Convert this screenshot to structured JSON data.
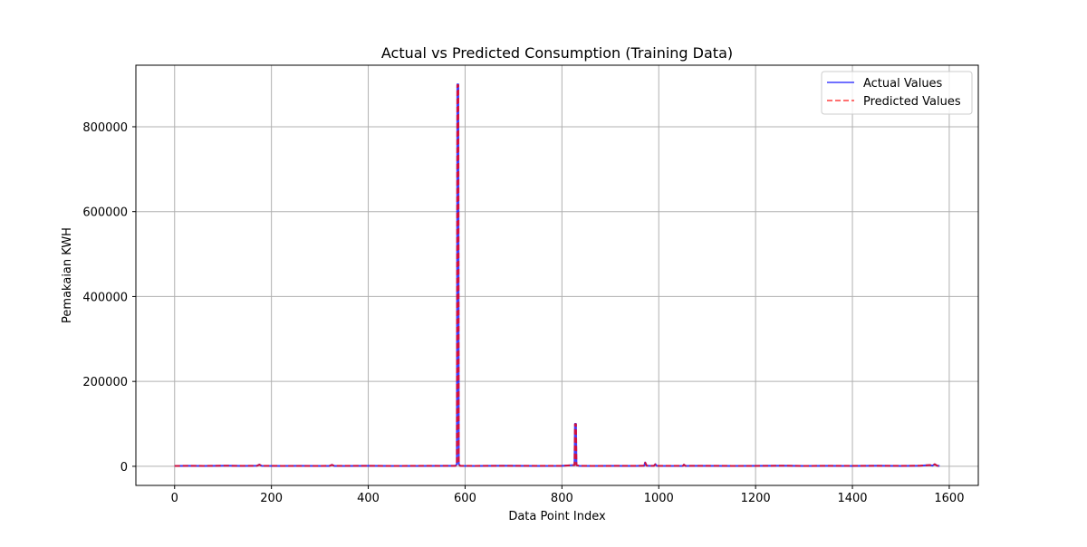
{
  "chart_data": {
    "type": "line",
    "title": "Actual vs Predicted Consumption (Training Data)",
    "xlabel": "Data Point Index",
    "ylabel": "Pemakaian KWH",
    "xlim": [
      -80,
      1660
    ],
    "ylim": [
      -45000,
      945000
    ],
    "xticks": [
      0,
      200,
      400,
      600,
      800,
      1000,
      1200,
      1400,
      1600
    ],
    "yticks": [
      0,
      200000,
      400000,
      600000,
      800000
    ],
    "grid": true,
    "legend_position": "top-right",
    "series": [
      {
        "name": "Actual Values",
        "color": "#0000ff",
        "style": "solid",
        "x": [
          0,
          30,
          60,
          100,
          140,
          170,
          175,
          180,
          220,
          260,
          300,
          320,
          325,
          330,
          400,
          450,
          500,
          550,
          580,
          583,
          584,
          586,
          587,
          590,
          620,
          680,
          750,
          800,
          826,
          827,
          829,
          830,
          835,
          860,
          900,
          950,
          970,
          972,
          975,
          990,
          993,
          996,
          1050,
          1052,
          1055,
          1100,
          1150,
          1200,
          1260,
          1300,
          1350,
          1400,
          1450,
          1500,
          1540,
          1560,
          1565,
          1570,
          1575,
          1580
        ],
        "y": [
          800,
          1200,
          900,
          1500,
          1000,
          1300,
          4000,
          1200,
          900,
          1100,
          800,
          1000,
          3500,
          900,
          1200,
          800,
          1000,
          1100,
          1200,
          5000,
          900000,
          900000,
          5000,
          1200,
          900,
          1300,
          1000,
          1200,
          3000,
          100000,
          100000,
          3000,
          1200,
          900,
          1100,
          1000,
          1500,
          9000,
          1500,
          1200,
          5000,
          1200,
          1000,
          4000,
          1000,
          1200,
          900,
          1100,
          1500,
          800,
          1200,
          1000,
          1300,
          900,
          1500,
          3000,
          1500,
          5000,
          1500,
          800
        ]
      },
      {
        "name": "Predicted Values",
        "color": "#ff0000",
        "style": "dashed",
        "x": [
          0,
          30,
          60,
          100,
          140,
          170,
          175,
          180,
          220,
          260,
          300,
          320,
          325,
          330,
          400,
          450,
          500,
          550,
          580,
          583,
          584,
          586,
          587,
          590,
          620,
          680,
          750,
          800,
          826,
          827,
          829,
          830,
          835,
          860,
          900,
          950,
          970,
          972,
          975,
          990,
          993,
          996,
          1050,
          1052,
          1055,
          1100,
          1150,
          1200,
          1260,
          1300,
          1350,
          1400,
          1450,
          1500,
          1540,
          1560,
          1565,
          1570,
          1575,
          1580
        ],
        "y": [
          900,
          1100,
          1000,
          1400,
          1100,
          1200,
          3800,
          1100,
          1000,
          1000,
          900,
          1100,
          3300,
          1000,
          1100,
          900,
          1100,
          1000,
          1100,
          4800,
          898000,
          898000,
          4800,
          1100,
          1000,
          1200,
          1100,
          1100,
          2900,
          99000,
          99000,
          2900,
          1100,
          1000,
          1000,
          1100,
          1400,
          8500,
          1400,
          1100,
          4800,
          1100,
          1100,
          3800,
          1100,
          1100,
          1000,
          1000,
          1400,
          900,
          1100,
          1100,
          1200,
          1000,
          1400,
          2900,
          1400,
          4800,
          1400,
          900
        ]
      }
    ]
  }
}
